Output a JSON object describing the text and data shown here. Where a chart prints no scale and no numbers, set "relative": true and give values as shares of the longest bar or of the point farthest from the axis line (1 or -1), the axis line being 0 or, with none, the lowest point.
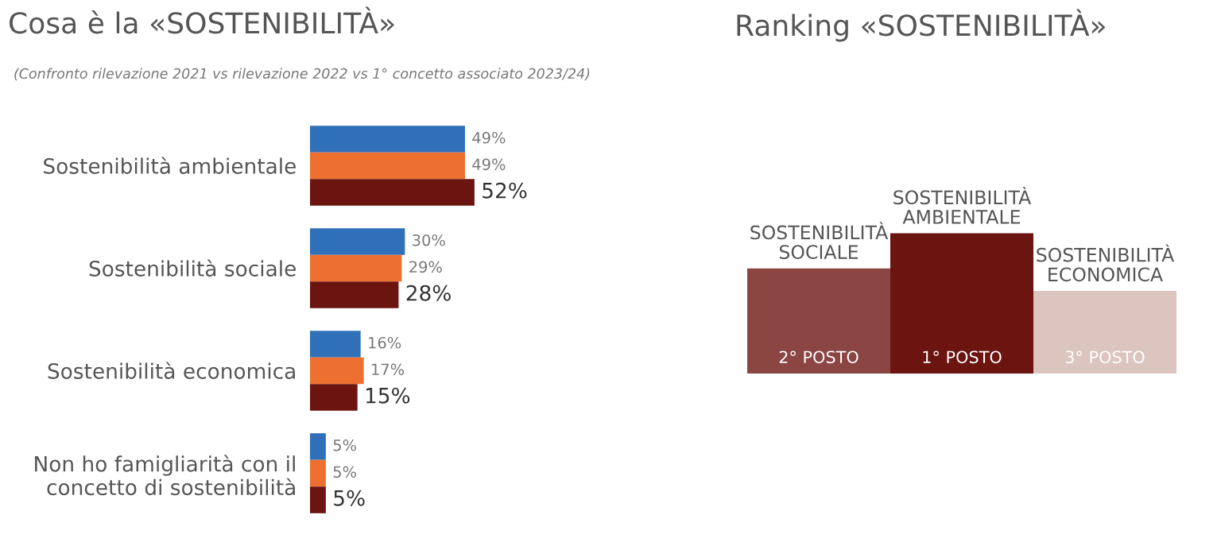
{
  "chart_data": [
    {
      "type": "bar",
      "orientation": "horizontal",
      "title": "Cosa è la «SOSTENIBILITÀ»",
      "subtitle": "(Confronto rilevazione 2021 vs rilevazione 2022 vs 1° concetto associato 2023/24)",
      "categories": [
        "Sostenibilità ambientale",
        "Sostenibilità sociale",
        "Sostenibilità economica",
        "Non ho famigliarità con il concetto di sostenibilità"
      ],
      "series": [
        {
          "color": "#3070b8",
          "values": [
            49,
            30,
            16,
            5
          ],
          "value_labels": [
            "49%",
            "30%",
            "16%",
            "5%"
          ]
        },
        {
          "color": "#ed7030",
          "values": [
            49,
            29,
            17,
            5
          ],
          "value_labels": [
            "49%",
            "29%",
            "17%",
            "5%"
          ]
        },
        {
          "color": "#6b1410",
          "values": [
            52,
            28,
            15,
            5
          ],
          "value_labels": [
            "52%",
            "28%",
            "15%",
            "5%"
          ]
        }
      ]
    },
    {
      "type": "bar",
      "relative": true,
      "title": "Ranking «SOSTENIBILITÀ»",
      "categories": [
        "SOSTENIBILITÀ SOCIALE",
        "SOSTENIBILITÀ AMBIENTALE",
        "SOSTENIBILITÀ ECONOMICA"
      ],
      "values": [
        0.75,
        1,
        0.59
      ],
      "colors": [
        "#8b4543",
        "#6b1410",
        "#dcc4bf"
      ],
      "annotations": [
        "2° POSTO",
        "1° POSTO",
        "3° POSTO"
      ]
    }
  ]
}
